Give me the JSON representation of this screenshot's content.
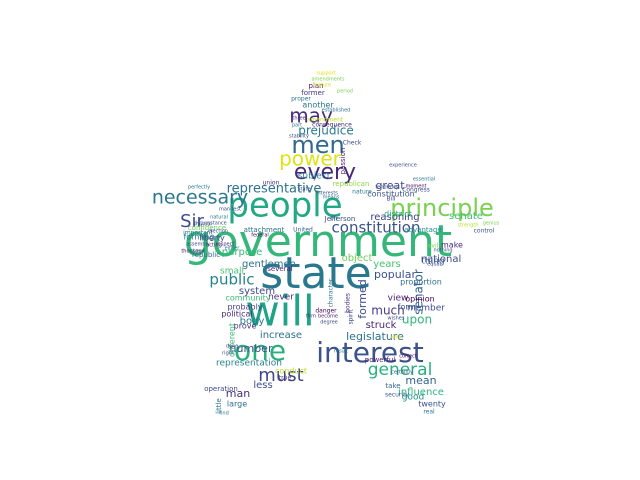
{
  "words": [
    {
      "text": "government",
      "color": "#35b779"
    },
    {
      "text": "state",
      "color": "#2a788e"
    },
    {
      "text": "will",
      "color": "#20a386"
    },
    {
      "text": "people",
      "color": "#22a884"
    },
    {
      "text": "interest",
      "color": "#3b528b"
    },
    {
      "text": "one",
      "color": "#2ab07f"
    },
    {
      "text": "principle",
      "color": "#7ad151"
    },
    {
      "text": "men",
      "color": "#31688e"
    },
    {
      "text": "every",
      "color": "#482878"
    },
    {
      "text": "power",
      "color": "#dde318"
    },
    {
      "text": "may",
      "color": "#472d7b"
    },
    {
      "text": "must",
      "color": "#414487"
    },
    {
      "text": "general",
      "color": "#29af7f"
    },
    {
      "text": "necessary",
      "color": "#2a788e"
    },
    {
      "text": "Sir",
      "color": "#3e4989"
    },
    {
      "text": "constitution",
      "color": "#3b528b"
    },
    {
      "text": "public",
      "color": "#26828e"
    },
    {
      "text": "representative",
      "color": "#2c728e"
    },
    {
      "text": "prejudice",
      "color": "#297b8e"
    },
    {
      "text": "upon",
      "color": "#31b57b"
    },
    {
      "text": "senator",
      "color": "#33638d"
    },
    {
      "text": "great",
      "color": "#3f4788"
    },
    {
      "text": "subject",
      "color": "#25858e"
    },
    {
      "text": "mean",
      "color": "#32648e"
    },
    {
      "text": "influence",
      "color": "#2db27d"
    },
    {
      "text": "good",
      "color": "#1f958b"
    },
    {
      "text": "much",
      "color": "#443a83"
    },
    {
      "text": "object",
      "color": "#6ccd5a"
    },
    {
      "text": "years",
      "color": "#48c16e"
    },
    {
      "text": "senate",
      "color": "#40bd72"
    },
    {
      "text": "system",
      "color": "#3f4889"
    },
    {
      "text": "gentlemen",
      "color": "#2e6f8e"
    },
    {
      "text": "purpose",
      "color": "#35b779"
    },
    {
      "text": "body",
      "color": "#2a788e"
    },
    {
      "text": "formed",
      "color": "#3e4a89"
    },
    {
      "text": "reasoning",
      "color": "#424186"
    },
    {
      "text": "popular",
      "color": "#3b528b"
    },
    {
      "text": "legislature",
      "color": "#2c718e"
    },
    {
      "text": "struck",
      "color": "#482475"
    },
    {
      "text": "national",
      "color": "#3e4989"
    },
    {
      "text": "never",
      "color": "#472c7a"
    },
    {
      "text": "number",
      "color": "#3b528b"
    },
    {
      "text": "increase",
      "color": "#2c728e"
    },
    {
      "text": "less",
      "color": "#3d4e8a"
    },
    {
      "text": "man",
      "color": "#46307e"
    },
    {
      "text": "view",
      "color": "#481f70"
    },
    {
      "text": "thing",
      "color": "#365c8d"
    },
    {
      "text": "member",
      "color": "#3e4c8a"
    },
    {
      "text": "make",
      "color": "#472a7a"
    },
    {
      "text": "another",
      "color": "#2a768e"
    },
    {
      "text": "plan",
      "color": "#471365"
    },
    {
      "text": "former",
      "color": "#46337f"
    },
    {
      "text": "proper",
      "color": "#2d708e"
    },
    {
      "text": "passion",
      "color": "#481c6e"
    },
    {
      "text": "constitution",
      "color": "#3b528b"
    },
    {
      "text": "district",
      "color": "#25ab82"
    },
    {
      "text": "advantage",
      "color": "#228c8d"
    },
    {
      "text": "representation",
      "color": "#26818e"
    },
    {
      "text": "small",
      "color": "#4ac16d"
    },
    {
      "text": "community",
      "color": "#3aba76"
    },
    {
      "text": "probably",
      "color": "#424086"
    },
    {
      "text": "political",
      "color": "#482878"
    },
    {
      "text": "forming",
      "color": "#2b748e"
    },
    {
      "text": "liberty",
      "color": "#3e4989"
    },
    {
      "text": "republic",
      "color": "#31678e"
    },
    {
      "text": "attachment",
      "color": "#2c728e"
    },
    {
      "text": "opinion",
      "color": "#440154"
    },
    {
      "text": "proportion",
      "color": "#2d708e"
    },
    {
      "text": "several",
      "color": "#482677"
    },
    {
      "text": "United",
      "color": "#33638d"
    },
    {
      "text": "Jefferson",
      "color": "#3d4e8a"
    },
    {
      "text": "powerful",
      "color": "#482071"
    },
    {
      "text": "conduct",
      "color": "#bddf26"
    },
    {
      "text": "danger",
      "color": "#440154"
    },
    {
      "text": "security",
      "color": "#34618d"
    },
    {
      "text": "take",
      "color": "#31688e"
    },
    {
      "text": "twenty",
      "color": "#3b528b"
    },
    {
      "text": "real",
      "color": "#2a788e"
    },
    {
      "text": "operation",
      "color": "#3e4989"
    },
    {
      "text": "large",
      "color": "#2d708e"
    },
    {
      "text": "true",
      "color": "#472d7b"
    },
    {
      "text": "different",
      "color": "#3aba76"
    },
    {
      "text": "prove",
      "color": "#46337f"
    },
    {
      "text": "little",
      "color": "#2a788e"
    },
    {
      "text": "Congress",
      "color": "#3b528b"
    },
    {
      "text": "union",
      "color": "#482878"
    },
    {
      "text": "confidence",
      "color": "#6ece58"
    },
    {
      "text": "important",
      "color": "#2c728e"
    },
    {
      "text": "thousand",
      "color": "#440154"
    },
    {
      "text": "republican",
      "color": "#8fd744"
    },
    {
      "text": "nature",
      "color": "#2a788e"
    },
    {
      "text": "amendment",
      "color": "#bddf26"
    },
    {
      "text": "consequence",
      "color": "#482878"
    },
    {
      "text": "amendments",
      "color": "#7ad151"
    },
    {
      "text": "Check",
      "color": "#3e4989"
    },
    {
      "text": "Mr",
      "color": "#2a788e"
    },
    {
      "text": "form",
      "color": "#3b528b"
    },
    {
      "text": "become",
      "color": "#482878"
    },
    {
      "text": "degree",
      "color": "#3e4989"
    },
    {
      "text": "control",
      "color": "#3b528b"
    },
    {
      "text": "strength",
      "color": "#b5de2b"
    },
    {
      "text": "genius",
      "color": "#7ad151"
    },
    {
      "text": "three",
      "color": "#482878"
    },
    {
      "text": "part",
      "color": "#2a788e"
    },
    {
      "text": "stability",
      "color": "#3e4989"
    },
    {
      "text": "tendency",
      "color": "#3b528b"
    },
    {
      "text": "essential",
      "color": "#2c728e"
    },
    {
      "text": "experience",
      "color": "#3b528b"
    },
    {
      "text": "federal",
      "color": "#440154"
    },
    {
      "text": "assembly",
      "color": "#3e4989"
    },
    {
      "text": "others",
      "color": "#2a788e"
    },
    {
      "text": "mutual",
      "color": "#3b528b"
    },
    {
      "text": "respect",
      "color": "#482878"
    },
    {
      "text": "either",
      "color": "#2c728e"
    },
    {
      "text": "certainly",
      "color": "#3b528b"
    },
    {
      "text": "correct",
      "color": "#440154"
    },
    {
      "text": "find",
      "color": "#2a788e"
    },
    {
      "text": "right",
      "color": "#3e4989"
    },
    {
      "text": "done",
      "color": "#3b528b"
    },
    {
      "text": "firm",
      "color": "#482878"
    },
    {
      "text": "result",
      "color": "#2a788e"
    },
    {
      "text": "wishes",
      "color": "#3e4989"
    },
    {
      "text": "evil",
      "color": "#7ad151"
    },
    {
      "text": "idea",
      "color": "#dde318"
    },
    {
      "text": "nothing",
      "color": "#3b528b"
    },
    {
      "text": "feature",
      "color": "#dde318"
    },
    {
      "text": "support",
      "color": "#dde318"
    },
    {
      "text": "spirit",
      "color": "#3e4989"
    },
    {
      "text": "bodies",
      "color": "#482878"
    },
    {
      "text": "character",
      "color": "#2c728e"
    },
    {
      "text": "interests",
      "color": "#3b528b"
    },
    {
      "text": "means",
      "color": "#2a788e"
    },
    {
      "text": "circumstance",
      "color": "#3b528b"
    },
    {
      "text": "manifest",
      "color": "#3e4989"
    },
    {
      "text": "natural",
      "color": "#2a788e"
    },
    {
      "text": "election",
      "color": "#3b528b"
    },
    {
      "text": "acting",
      "color": "#482878"
    },
    {
      "text": "Bill",
      "color": "#3e4989"
    },
    {
      "text": "period",
      "color": "#7ad151"
    },
    {
      "text": "perfectly",
      "color": "#2a788e"
    },
    {
      "text": "moment",
      "color": "#440154"
    },
    {
      "text": "State",
      "color": "#3b528b"
    },
    {
      "text": "established",
      "color": "#2c728e"
    },
    {
      "text": "equal",
      "color": "#3e4989"
    }
  ]
}
